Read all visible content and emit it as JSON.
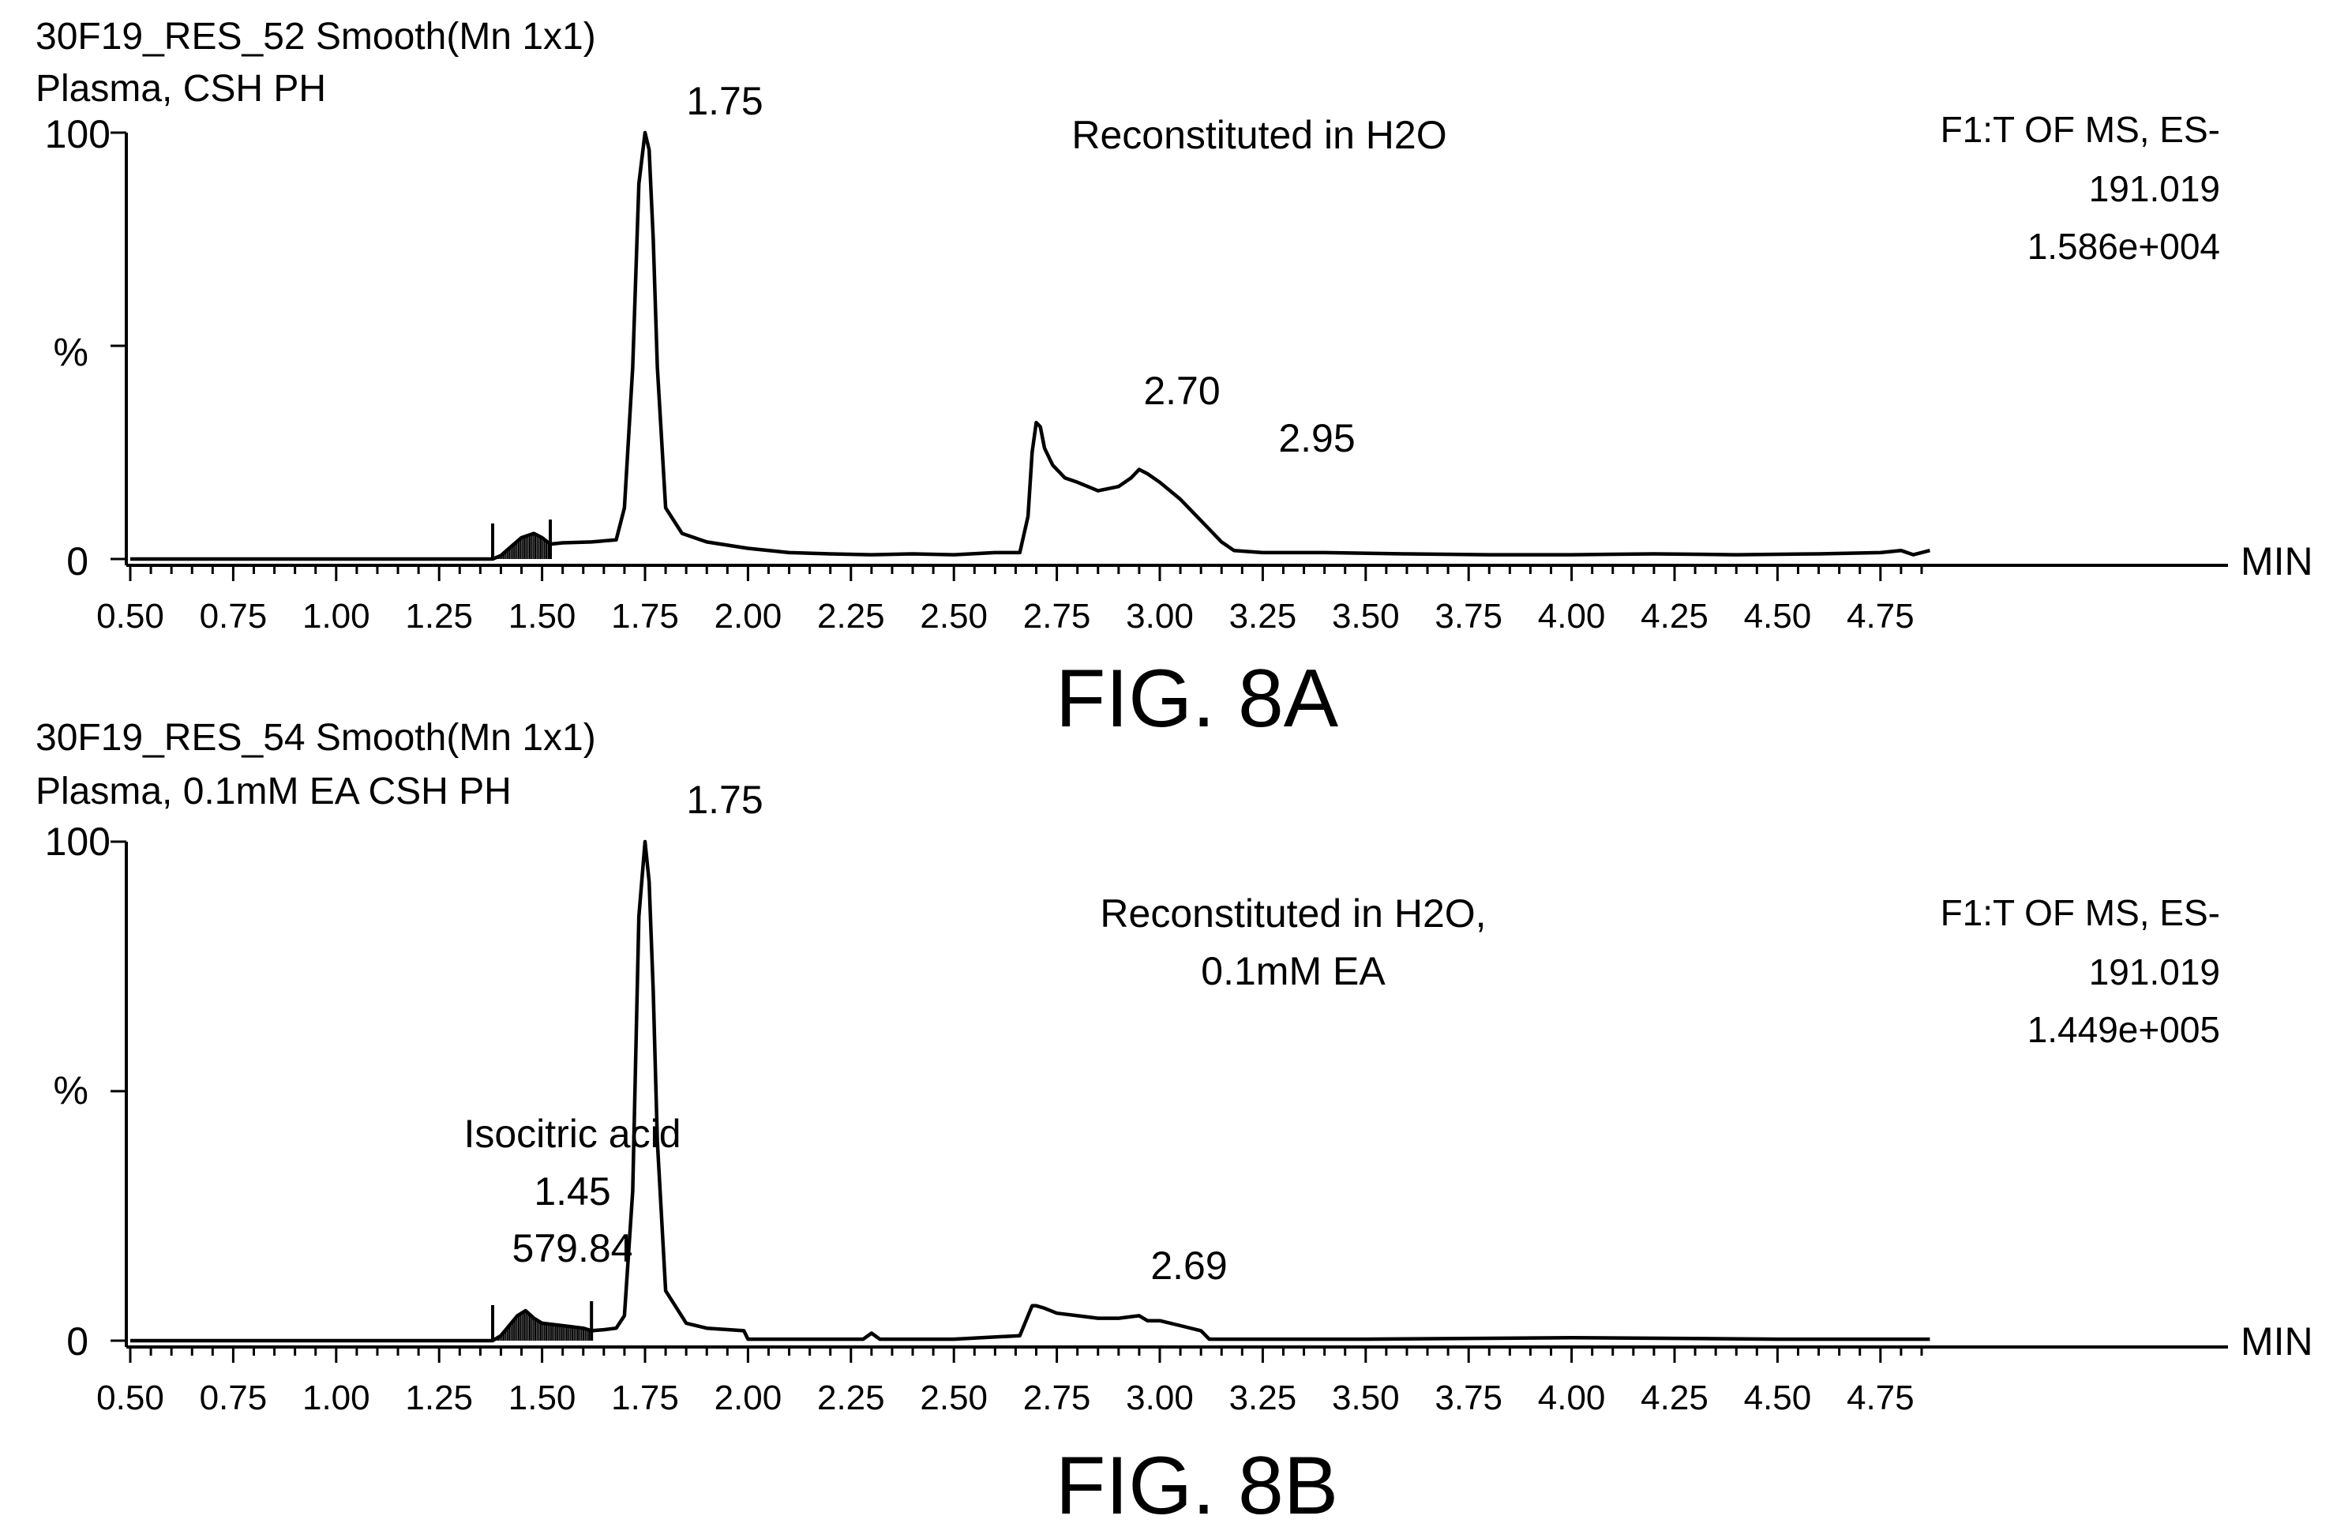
{
  "figures": [
    {
      "header_line1": "30F19_RES_52 Smooth(Mn 1x1)",
      "header_line2": "Plasma, CSH PH",
      "note_line1": "Reconstituted in H2O",
      "note_line2": "",
      "meta_line1": "F1:T OF MS, ES-",
      "meta_line2": "191.019",
      "meta_line3": "1.586e+004",
      "y_top_label": "100",
      "y_mid_label": "%",
      "y_zero_label": "0",
      "x_unit": "MIN",
      "caption": "FIG. 8A",
      "peak_labels": [
        "1.75",
        "2.70",
        "2.95"
      ]
    },
    {
      "header_line1": "30F19_RES_54 Smooth(Mn 1x1)",
      "header_line2": "Plasma, 0.1mM EA CSH PH",
      "note_line1": "Reconstituted in H2O,",
      "note_line2": "0.1mM EA",
      "meta_line1": "F1:T OF MS, ES-",
      "meta_line2": "191.019",
      "meta_line3": "1.449e+005",
      "y_top_label": "100",
      "y_mid_label": "%",
      "y_zero_label": "0",
      "x_unit": "MIN",
      "caption": "FIG. 8B",
      "peak_labels": [
        "1.75",
        "2.69"
      ],
      "integrated_peak": {
        "name": "Isocitric acid",
        "time": "1.45",
        "area": "579.84"
      }
    }
  ],
  "chart_data": [
    {
      "type": "line",
      "title": "30F19_RES_52 Smooth(Mn 1x1)",
      "subtitle": "Plasma, CSH PH",
      "xlabel": "MIN",
      "ylabel": "%",
      "xlim": [
        0.5,
        4.87
      ],
      "ylim": [
        0,
        100
      ],
      "x_ticks": [
        "0.50",
        "0.75",
        "1.00",
        "1.25",
        "1.50",
        "1.75",
        "2.00",
        "2.25",
        "2.50",
        "2.75",
        "3.00",
        "3.25",
        "3.50",
        "3.75",
        "4.00",
        "4.25",
        "4.50",
        "4.75"
      ],
      "y_ticks": [
        "0",
        "%",
        "100"
      ],
      "grid": false,
      "integration_window": [
        1.38,
        1.52
      ],
      "series": [
        {
          "x": [
            0.5,
            1.0,
            1.38,
            1.4,
            1.42,
            1.45,
            1.48,
            1.5,
            1.52,
            1.55,
            1.62,
            1.68,
            1.7,
            1.72,
            1.735,
            1.75,
            1.76,
            1.77,
            1.78,
            1.8,
            1.84,
            1.9,
            2.0,
            2.1,
            2.2,
            2.3,
            2.4,
            2.5,
            2.6,
            2.66,
            2.68,
            2.69,
            2.7,
            2.71,
            2.72,
            2.74,
            2.77,
            2.8,
            2.85,
            2.9,
            2.93,
            2.95,
            2.97,
            3.0,
            3.05,
            3.1,
            3.15,
            3.18,
            3.25,
            3.4,
            3.6,
            3.8,
            4.0,
            4.2,
            4.4,
            4.6,
            4.75,
            4.8,
            4.83,
            4.87
          ],
          "y": [
            0,
            0,
            0,
            0.8,
            2.5,
            5,
            6,
            5,
            3.5,
            3.8,
            4,
            4.5,
            12,
            45,
            88,
            100,
            96,
            75,
            45,
            12,
            6,
            4,
            2.5,
            1.5,
            1.2,
            1,
            1.2,
            1,
            1.5,
            1.5,
            10,
            25,
            32,
            31,
            26,
            22,
            19,
            18,
            16,
            17,
            19,
            21,
            20,
            18,
            14,
            9,
            4,
            2,
            1.5,
            1.5,
            1.2,
            1,
            1,
            1.2,
            1,
            1.2,
            1.5,
            2,
            1,
            2
          ]
        }
      ],
      "annotations": [
        "Reconstituted in H2O",
        "F1:T OF MS, ES-",
        "191.019",
        "1.586e+004",
        "1.75",
        "2.70",
        "2.95"
      ]
    },
    {
      "type": "line",
      "title": "30F19_RES_54 Smooth(Mn 1x1)",
      "subtitle": "Plasma, 0.1mM EA CSH PH",
      "xlabel": "MIN",
      "ylabel": "%",
      "xlim": [
        0.5,
        4.87
      ],
      "ylim": [
        0,
        100
      ],
      "x_ticks": [
        "0.50",
        "0.75",
        "1.00",
        "1.25",
        "1.50",
        "1.75",
        "2.00",
        "2.25",
        "2.50",
        "2.75",
        "3.00",
        "3.25",
        "3.50",
        "3.75",
        "4.00",
        "4.25",
        "4.50",
        "4.75"
      ],
      "y_ticks": [
        "0",
        "%",
        "100"
      ],
      "grid": false,
      "integration_window": [
        1.38,
        1.62
      ],
      "series": [
        {
          "x": [
            0.5,
            1.0,
            1.38,
            1.4,
            1.42,
            1.44,
            1.46,
            1.48,
            1.5,
            1.55,
            1.6,
            1.62,
            1.65,
            1.68,
            1.7,
            1.72,
            1.735,
            1.75,
            1.76,
            1.77,
            1.78,
            1.8,
            1.85,
            1.9,
            1.99,
            2.0,
            2.28,
            2.3,
            2.32,
            2.5,
            2.66,
            2.68,
            2.69,
            2.7,
            2.72,
            2.75,
            2.8,
            2.85,
            2.9,
            2.95,
            2.97,
            3.0,
            3.05,
            3.1,
            3.12,
            3.2,
            3.5,
            4.0,
            4.5,
            4.87
          ],
          "y": [
            0,
            0,
            0,
            1,
            3,
            5,
            6,
            4.5,
            3.5,
            3,
            2.5,
            2,
            2.2,
            2.5,
            5,
            30,
            85,
            100,
            92,
            70,
            40,
            10,
            3.5,
            2.5,
            2,
            0.3,
            0.3,
            1.5,
            0.3,
            0.3,
            1,
            5,
            7,
            7,
            6.5,
            5.5,
            5,
            4.5,
            4.5,
            5,
            4,
            4,
            3,
            2,
            0.3,
            0.3,
            0.3,
            0.6,
            0.3,
            0.3
          ]
        }
      ],
      "annotations": [
        "Reconstituted in H2O,",
        "0.1mM EA",
        "F1:T OF MS, ES-",
        "191.019",
        "1.449e+005",
        "Isocitric acid",
        "1.45",
        "579.84",
        "1.75",
        "2.69"
      ]
    }
  ]
}
